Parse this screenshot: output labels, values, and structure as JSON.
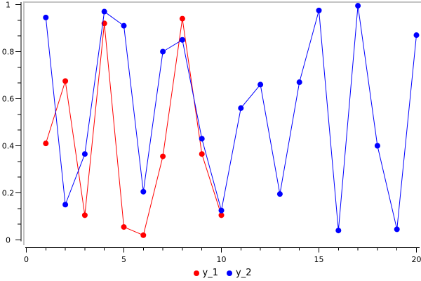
{
  "window": {
    "background": "#ffffff",
    "frame_shadow_color": "#c3c3c3",
    "axis_color": "#000000",
    "tick_label_color": "#000000"
  },
  "chart_data": {
    "type": "line",
    "title": "",
    "xlabel": "",
    "ylabel": "",
    "xlim": [
      0,
      20
    ],
    "ylim": [
      0,
      1
    ],
    "grid": false,
    "legend_position": "bottom-center",
    "x_major_ticks": [
      0,
      5,
      10,
      15,
      20
    ],
    "x_tick_labels": [
      "0",
      "5",
      "10",
      "15",
      "20"
    ],
    "x_minor_step": 1,
    "y_major_ticks": [
      0,
      0.2,
      0.4,
      0.6,
      0.8,
      1
    ],
    "y_tick_labels": [
      "0",
      "0.2",
      "0.4",
      "0.6",
      "0.8",
      "1"
    ],
    "y_subticks_per_major": 2,
    "series": [
      {
        "name": "y_1",
        "color": "#ff0000",
        "marker": "filled-circle",
        "line_style": "solid",
        "x": [
          1,
          2,
          3,
          4,
          5,
          6,
          7,
          8,
          9,
          10
        ],
        "values": [
          0.41,
          0.675,
          0.105,
          0.92,
          0.055,
          0.02,
          0.355,
          0.94,
          0.365,
          0.105
        ]
      },
      {
        "name": "y_2",
        "color": "#0000ff",
        "marker": "filled-circle",
        "line_style": "solid",
        "x": [
          1,
          2,
          3,
          4,
          5,
          6,
          7,
          8,
          9,
          10,
          11,
          12,
          13,
          14,
          15,
          16,
          17,
          18,
          19,
          20
        ],
        "values": [
          0.945,
          0.15,
          0.365,
          0.97,
          0.91,
          0.205,
          0.8,
          0.85,
          0.43,
          0.125,
          0.56,
          0.66,
          0.195,
          0.67,
          0.975,
          0.04,
          0.995,
          0.4,
          0.045,
          0.87
        ]
      }
    ]
  },
  "legend": {
    "items": [
      {
        "label": "y_1",
        "color": "#ff0000"
      },
      {
        "label": "y_2",
        "color": "#0000ff"
      }
    ]
  }
}
